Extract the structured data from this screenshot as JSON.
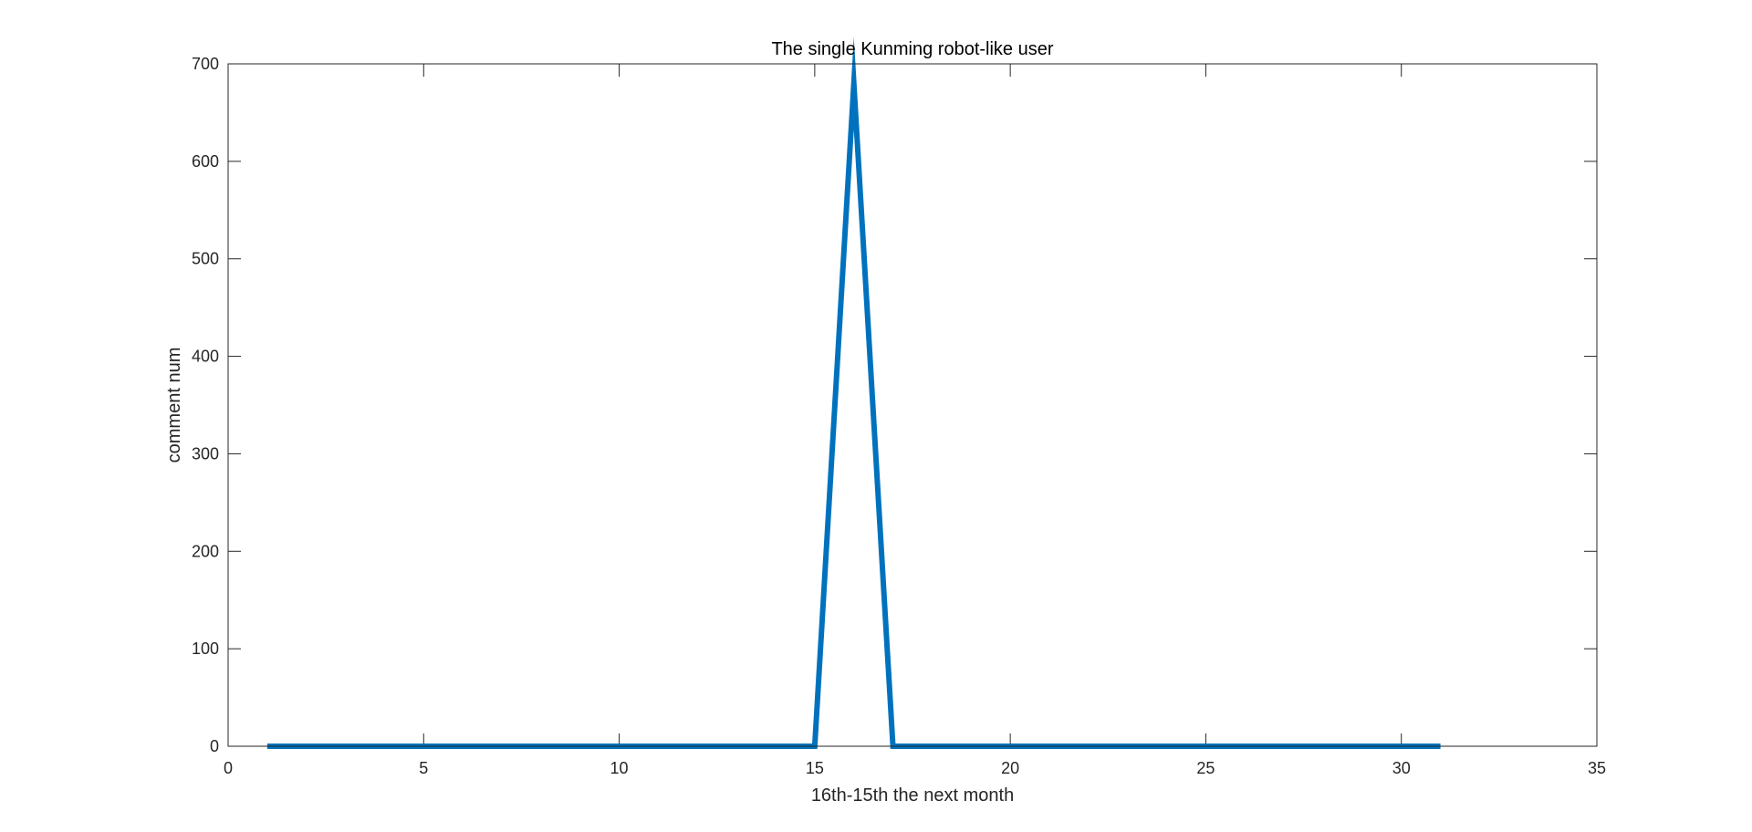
{
  "chart_data": {
    "type": "line",
    "title": "The single Kunming robot-like user",
    "xlabel": "16th-15th the next month",
    "ylabel": "comment num",
    "xlim": [
      0,
      35
    ],
    "ylim": [
      0,
      700
    ],
    "xticks": [
      0,
      5,
      10,
      15,
      20,
      25,
      30,
      35
    ],
    "yticks": [
      0,
      100,
      200,
      300,
      400,
      500,
      600,
      700
    ],
    "grid": false,
    "series": [
      {
        "color": "#0072BD",
        "x": [
          1,
          2,
          3,
          4,
          5,
          6,
          7,
          8,
          9,
          10,
          11,
          12,
          13,
          14,
          15,
          16,
          17,
          18,
          19,
          20,
          21,
          22,
          23,
          24,
          25,
          26,
          27,
          28,
          29,
          30,
          31
        ],
        "values": [
          0,
          0,
          0,
          0,
          0,
          0,
          0,
          0,
          0,
          0,
          0,
          0,
          0,
          0,
          0,
          680,
          0,
          0,
          0,
          0,
          0,
          0,
          0,
          0,
          0,
          0,
          0,
          0,
          0,
          0,
          0
        ]
      }
    ]
  }
}
